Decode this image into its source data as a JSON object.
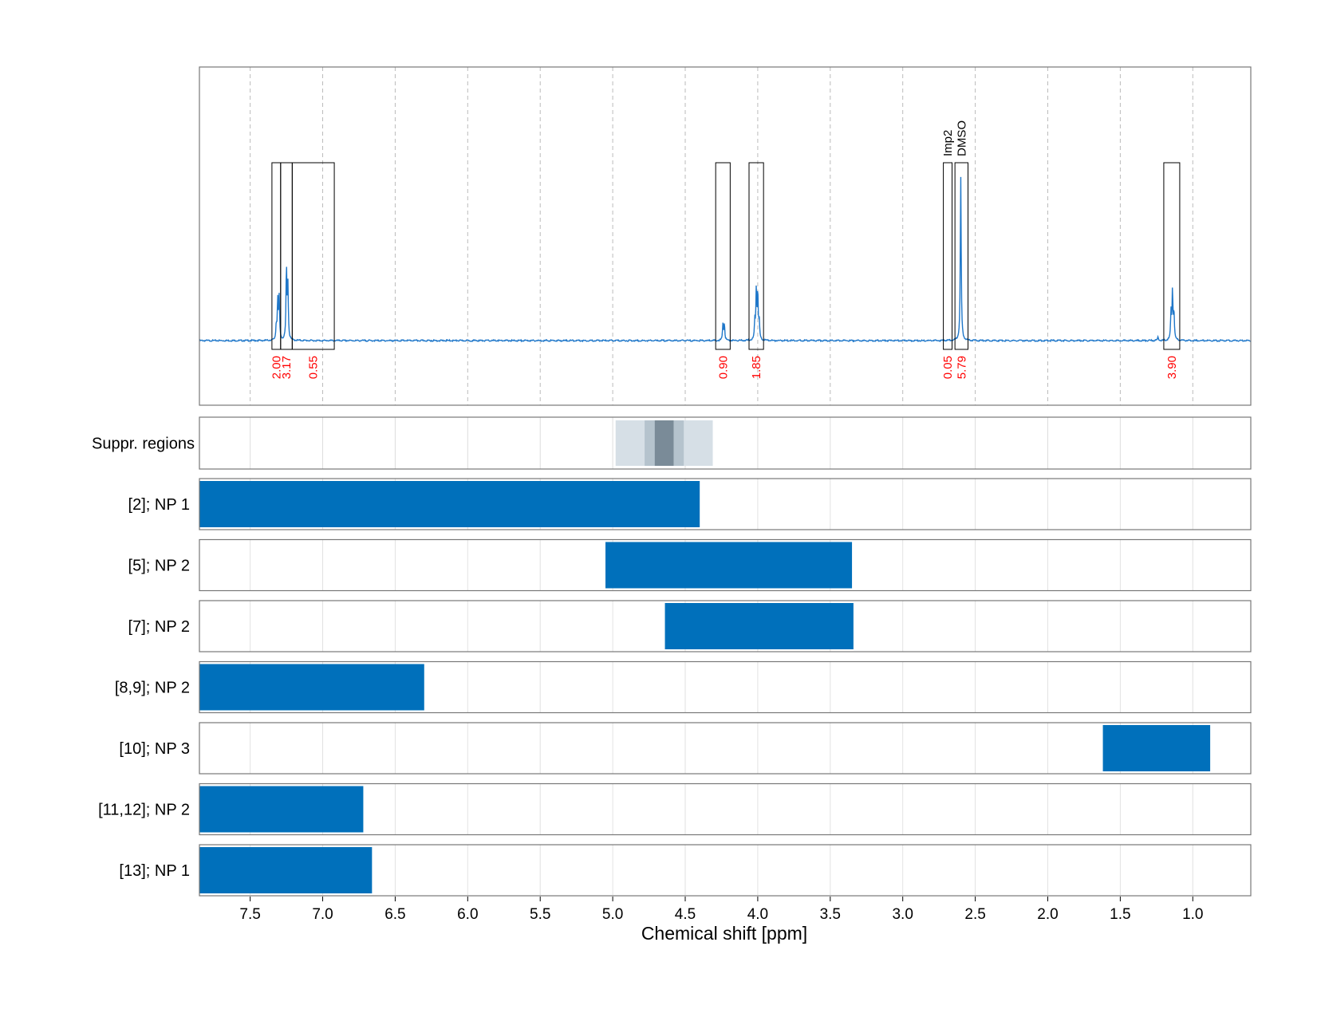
{
  "colors": {
    "spectrum": "#1f77c9",
    "bar": "#0070bb",
    "integral": "#ff0000",
    "frame": "#777777",
    "grid": "#bbbbbb",
    "suppr_light": "#d6dfe6",
    "suppr_mid": "#b5c3cd",
    "suppr_dark": "#7a8b98"
  },
  "chart_data": {
    "type": "nmr-spectrum-with-range-bars",
    "xlabel": "Chemical shift [ppm]",
    "xlim": [
      7.85,
      0.6
    ],
    "xaxis_reversed": true,
    "x_ticks": [
      7.5,
      7.0,
      6.5,
      6.0,
      5.5,
      5.0,
      4.5,
      4.0,
      3.5,
      3.0,
      2.5,
      2.0,
      1.5,
      1.0
    ],
    "x_tick_labels": [
      "7.5",
      "7.0",
      "6.5",
      "6.0",
      "5.5",
      "5.0",
      "4.5",
      "4.0",
      "3.5",
      "3.0",
      "2.5",
      "2.0",
      "1.5",
      "1.0"
    ],
    "grid": "vertical dashed",
    "spectrum": {
      "peaks": [
        {
          "ppm": 7.31,
          "height": 0.22
        },
        {
          "ppm": 7.3,
          "height": 0.23
        },
        {
          "ppm": 7.32,
          "height": 0.08
        },
        {
          "ppm": 7.25,
          "height": 0.4
        },
        {
          "ppm": 7.24,
          "height": 0.3
        },
        {
          "ppm": 4.23,
          "height": 0.09
        },
        {
          "ppm": 4.24,
          "height": 0.09
        },
        {
          "ppm": 4.01,
          "height": 0.27
        },
        {
          "ppm": 4.0,
          "height": 0.26
        },
        {
          "ppm": 4.02,
          "height": 0.1
        },
        {
          "ppm": 3.99,
          "height": 0.1
        },
        {
          "ppm": 2.6,
          "height": 0.9
        },
        {
          "ppm": 1.14,
          "height": 0.27
        },
        {
          "ppm": 1.15,
          "height": 0.15
        },
        {
          "ppm": 1.13,
          "height": 0.15
        },
        {
          "ppm": 1.24,
          "height": 0.02
        }
      ]
    },
    "integration_regions": [
      {
        "from": 7.35,
        "to": 7.29,
        "integral": "2.00"
      },
      {
        "from": 7.29,
        "to": 7.21,
        "integral": "3.17"
      },
      {
        "from": 7.21,
        "to": 6.92,
        "integral": "0.55"
      },
      {
        "from": 4.29,
        "to": 4.19,
        "integral": "0.90"
      },
      {
        "from": 4.06,
        "to": 3.96,
        "integral": "1.85"
      },
      {
        "from": 2.72,
        "to": 2.66,
        "integral": "0.05",
        "label": "Imp2"
      },
      {
        "from": 2.64,
        "to": 2.55,
        "integral": "5.79",
        "label": "DMSO"
      },
      {
        "from": 1.2,
        "to": 1.09,
        "integral": "3.90"
      }
    ],
    "suppressed_regions": [
      {
        "from": 4.98,
        "to": 4.31,
        "level": "light"
      },
      {
        "from": 4.78,
        "to": 4.51,
        "level": "mid"
      },
      {
        "from": 4.71,
        "to": 4.58,
        "level": "dark"
      }
    ],
    "range_rows": [
      {
        "label": "[2]; NP 1",
        "from": 7.85,
        "to": 4.4
      },
      {
        "label": "[5]; NP 2",
        "from": 5.05,
        "to": 3.35
      },
      {
        "label": "[7]; NP 2",
        "from": 4.64,
        "to": 3.34
      },
      {
        "label": "[8,9]; NP 2",
        "from": 7.85,
        "to": 6.3
      },
      {
        "label": "[10]; NP 3",
        "from": 1.62,
        "to": 0.88
      },
      {
        "label": "[11,12]; NP 2",
        "from": 7.85,
        "to": 6.72
      },
      {
        "label": "[13]; NP 1",
        "from": 7.85,
        "to": 6.66
      }
    ],
    "suppr_label": "Suppr. regions"
  }
}
